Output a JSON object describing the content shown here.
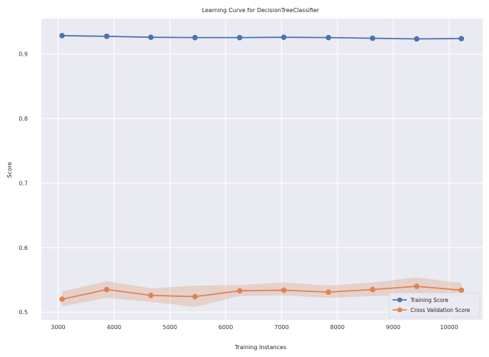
{
  "chart_data": {
    "type": "line",
    "title": "Learning Curve for DecisionTreeClassifier",
    "xlabel": "Training Instances",
    "ylabel": "Score",
    "xlim": [
      2700,
      10600
    ],
    "ylim": [
      0.488,
      0.955
    ],
    "xticks": [
      3000,
      4000,
      5000,
      6000,
      7000,
      8000,
      9000,
      10000
    ],
    "yticks": [
      0.5,
      0.6,
      0.7,
      0.8,
      0.9
    ],
    "x": [
      3070,
      3870,
      4660,
      5450,
      6250,
      7040,
      7840,
      8630,
      9420,
      10220
    ],
    "grid": true,
    "legend_position": "bottom-right",
    "series": [
      {
        "name": "Training Score",
        "color": "#4c72b0",
        "values": [
          0.9285,
          0.9275,
          0.926,
          0.9255,
          0.9255,
          0.926,
          0.9255,
          0.9245,
          0.9235,
          0.924
        ],
        "lower": [
          0.9275,
          0.9265,
          0.9255,
          0.925,
          0.925,
          0.9255,
          0.925,
          0.924,
          0.923,
          0.9235
        ],
        "upper": [
          0.9295,
          0.9285,
          0.9265,
          0.926,
          0.926,
          0.9265,
          0.926,
          0.925,
          0.924,
          0.9245
        ]
      },
      {
        "name": "Cross Validation Score",
        "color": "#dd8452",
        "values": [
          0.52,
          0.535,
          0.526,
          0.524,
          0.533,
          0.534,
          0.531,
          0.535,
          0.54,
          0.534
        ],
        "lower": [
          0.509,
          0.522,
          0.516,
          0.508,
          0.525,
          0.526,
          0.522,
          0.525,
          0.527,
          0.524
        ],
        "upper": [
          0.532,
          0.548,
          0.537,
          0.541,
          0.542,
          0.546,
          0.541,
          0.546,
          0.554,
          0.545
        ]
      }
    ]
  }
}
